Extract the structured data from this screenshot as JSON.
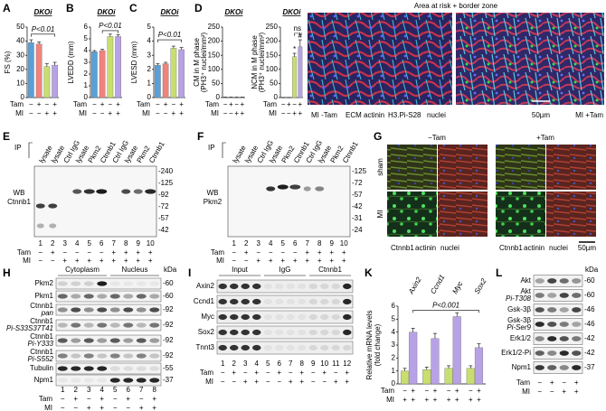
{
  "chart_data": [
    {
      "type": "bar",
      "label": "A",
      "title": "DKOi",
      "ylabel": "FS (%)",
      "values": [
        39,
        38,
        22,
        23
      ],
      "errors": [
        2,
        1.5,
        2,
        2
      ],
      "colors": [
        "#5aa0d8",
        "#f0837c",
        "#c8de6f",
        "#b8a2e6"
      ],
      "ylim": [
        0,
        50
      ],
      "yticks": [
        0,
        10,
        20,
        30,
        40,
        50
      ],
      "annotation": "P<0.01",
      "conditions": [
        {
          "label": "Tam",
          "values": [
            "−",
            "+",
            "−",
            "+"
          ]
        },
        {
          "label": "MI",
          "values": [
            "−",
            "−",
            "+",
            "+"
          ]
        }
      ]
    },
    {
      "type": "bar",
      "label": "B",
      "title": "DKOi",
      "ylabel": "LVEDD (mm)",
      "values": [
        3.9,
        4.0,
        5.2,
        5.2
      ],
      "errors": [
        0.1,
        0.1,
        0.2,
        0.15
      ],
      "colors": [
        "#5aa0d8",
        "#f0837c",
        "#c8de6f",
        "#b8a2e6"
      ],
      "ylim": [
        0,
        6
      ],
      "yticks": [
        0,
        1,
        2,
        3,
        4,
        5,
        6
      ],
      "annotation": "P<0.01",
      "conditions": [
        {
          "label": "Tam",
          "values": [
            "−",
            "+",
            "−",
            "+"
          ]
        },
        {
          "label": "MI",
          "values": [
            "−",
            "−",
            "+",
            "+"
          ]
        }
      ]
    },
    {
      "type": "bar",
      "label": "C",
      "title": "DKOi",
      "ylabel": "LVESD (mm)",
      "values": [
        2.3,
        2.4,
        3.5,
        3.4
      ],
      "errors": [
        0.1,
        0.1,
        0.15,
        0.15
      ],
      "colors": [
        "#5aa0d8",
        "#f0837c",
        "#c8de6f",
        "#b8a2e6"
      ],
      "ylim": [
        0,
        5
      ],
      "yticks": [
        0,
        1,
        2,
        3,
        4,
        5
      ],
      "annotation": "P<0.01",
      "conditions": [
        {
          "label": "Tam",
          "values": [
            "−",
            "+",
            "−",
            "+"
          ]
        },
        {
          "label": "MI",
          "values": [
            "−",
            "−",
            "+",
            "+"
          ]
        }
      ]
    },
    {
      "type": "bar",
      "label": "D",
      "title": "DKOi",
      "ylabel": [
        "CM in M phase",
        "(PH3⁺ nuclei/mm²)"
      ],
      "values": [
        1,
        1,
        1,
        1
      ],
      "errors": [
        0.5,
        0.5,
        0.5,
        0.5
      ],
      "colors": [
        "#5aa0d8",
        "#f0837c",
        "#c8de6f",
        "#b8a2e6"
      ],
      "ylim": [
        0,
        250
      ],
      "yticks": [
        0,
        50,
        100,
        150,
        200,
        250
      ],
      "conditions": [
        {
          "label": "Tam",
          "values": [
            "−",
            "+",
            "−",
            "+"
          ]
        },
        {
          "label": "MI",
          "values": [
            "−",
            "−",
            "+",
            "+"
          ]
        }
      ]
    },
    {
      "type": "bar",
      "title": "DKOi",
      "ylabel": [
        "NCM in M phase",
        "(PH3⁺ nuclei/mm²)"
      ],
      "values": [
        0,
        0,
        145,
        180
      ],
      "errors": [
        0,
        0,
        12,
        25
      ],
      "colors": [
        "#5aa0d8",
        "#f0837c",
        "#c8de6f",
        "#b8a2e6"
      ],
      "ylim": [
        0,
        250
      ],
      "yticks": [
        0,
        50,
        100,
        150,
        200,
        250
      ],
      "annotations": [
        "ns",
        "*",
        "#"
      ],
      "conditions": [
        {
          "label": "Tam",
          "values": [
            "−",
            "+",
            "−",
            "+"
          ]
        },
        {
          "label": "MI",
          "values": [
            "−",
            "−",
            "+",
            "+"
          ]
        }
      ]
    },
    {
      "type": "bar",
      "label": "K",
      "ylabel": [
        "Relative mRNA levels",
        "(fold change)"
      ],
      "groups": [
        "Axin2",
        "Ccnd1",
        "Myc",
        "Sox2"
      ],
      "values": [
        1,
        4,
        1.1,
        3.5,
        1.2,
        5.2,
        1.2,
        2.8
      ],
      "errors": [
        0.2,
        0.3,
        0.2,
        0.4,
        0.2,
        0.3,
        0.2,
        0.3
      ],
      "colors": [
        "#c8de6f",
        "#b8a2e6",
        "#c8de6f",
        "#b8a2e6",
        "#c8de6f",
        "#b8a2e6",
        "#c8de6f",
        "#b8a2e6"
      ],
      "ylim": [
        0,
        6
      ],
      "yticks": [
        0,
        1,
        2,
        3,
        4,
        5,
        6
      ],
      "annotation": "P<0.001",
      "conditions": [
        {
          "label": "Tam",
          "values": [
            "−",
            "+",
            "−",
            "+",
            "−",
            "+",
            "−",
            "+"
          ]
        },
        {
          "label": "MI",
          "values": [
            "+",
            "+",
            "+",
            "+",
            "+",
            "+",
            "+",
            "+"
          ]
        }
      ]
    }
  ],
  "panels": {
    "D_image": {
      "title": "Area at risk + border zone",
      "left": "MI -Tam",
      "right": "MI +Tam",
      "stains": [
        "ECM",
        "actinin",
        "H3.Pi-S28",
        "nuclei"
      ],
      "scale": "50µm"
    },
    "E": {
      "label": "E",
      "ip": "IP",
      "lanes": [
        "lysate",
        "lysate",
        "Ctrl IgG",
        "lysate",
        "Pkm2",
        "Ctnnb1",
        "Ctrl IgG",
        "lysate",
        "Pkm2",
        "Ctnnb1"
      ],
      "wb": [
        "WB",
        "Ctnnb1"
      ],
      "kda": [
        "-240",
        "-125",
        "-92",
        "-72",
        "-57",
        "-42"
      ],
      "numbers": [
        "1",
        "2",
        "3",
        "4",
        "5",
        "6",
        "7",
        "8",
        "9",
        "10"
      ],
      "conditions": [
        {
          "label": "Tam",
          "values": [
            "−",
            "+",
            "−",
            "−",
            "−",
            "−",
            "+",
            "+",
            "+",
            "+"
          ]
        },
        {
          "label": "MI",
          "values": [
            "−",
            "−",
            "+",
            "+",
            "+",
            "+",
            "+",
            "+",
            "+",
            "+"
          ]
        }
      ]
    },
    "F": {
      "label": "F",
      "ip": "IP",
      "lanes": [
        "lysate",
        "lysate",
        "Ctrl IgG",
        "lysate",
        "Pkm2",
        "Ctnnb1",
        "Ctrl IgG",
        "lysate",
        "Pkm2",
        "Ctnnb1"
      ],
      "wb": [
        "WB",
        "Pkm2"
      ],
      "kda": [
        "-125",
        "-72",
        "-57",
        "-42",
        "-31",
        "-24"
      ],
      "numbers": [
        "1",
        "2",
        "3",
        "4",
        "5",
        "6",
        "7",
        "8",
        "9",
        "10"
      ],
      "conditions": [
        {
          "label": "Tam",
          "values": [
            "−",
            "+",
            "−",
            "−",
            "−",
            "−",
            "+",
            "+",
            "+",
            "+"
          ]
        },
        {
          "label": "MI",
          "values": [
            "−",
            "−",
            "+",
            "+",
            "+",
            "+",
            "+",
            "+",
            "+",
            "+"
          ]
        }
      ]
    },
    "G": {
      "label": "G",
      "columns": [
        "−Tam",
        "+Tam"
      ],
      "rows": [
        "sham",
        "MI"
      ],
      "stains": [
        "Ctnnb1",
        "actinin",
        "nuclei"
      ],
      "scale": "50µm"
    },
    "H": {
      "label": "H",
      "headers": [
        "Cytoplasm",
        "Nucleus"
      ],
      "kda_header": "kDa",
      "rows": [
        {
          "name": "Pkm2",
          "kda": "-60"
        },
        {
          "name": "Pkm1",
          "kda": "-60"
        },
        {
          "name": "Ctnnb1",
          "sub": "pan",
          "kda": "-92"
        },
        {
          "name": "Ctnnb1",
          "sub": "Pi-S33S37T41",
          "kda": "-92"
        },
        {
          "name": "Ctnnb1",
          "sub": "Pi-Y333",
          "kda": "-92"
        },
        {
          "name": "Ctnnb1",
          "sub": "Pi-S552",
          "kda": "-92"
        },
        {
          "name": "Tubulin",
          "kda": "-55"
        },
        {
          "name": "Npm1",
          "kda": "-37"
        }
      ],
      "numbers": [
        "1",
        "2",
        "3",
        "4",
        "5",
        "6",
        "7",
        "8"
      ],
      "conditions": [
        {
          "label": "Tam",
          "values": [
            "−",
            "+",
            "−",
            "+",
            "−",
            "+",
            "−",
            "+"
          ]
        },
        {
          "label": "MI",
          "values": [
            "−",
            "−",
            "+",
            "+",
            "−",
            "−",
            "+",
            "+"
          ]
        }
      ]
    },
    "I": {
      "label": "I",
      "headers": [
        "Input",
        "IgG",
        "Ctnnb1"
      ],
      "rows": [
        {
          "name": "Axin2"
        },
        {
          "name": "Ccnd1"
        },
        {
          "name": "Myc"
        },
        {
          "name": "Sox2"
        },
        {
          "name": "Tnnt3"
        }
      ],
      "numbers": [
        "1",
        "2",
        "3",
        "4",
        "5",
        "6",
        "7",
        "8",
        "9",
        "10",
        "11",
        "12"
      ],
      "conditions": [
        {
          "label": "Tam",
          "values": [
            "−",
            "+",
            "−",
            "+",
            "−",
            "+",
            "−",
            "+",
            "−",
            "+",
            "−",
            "+"
          ]
        },
        {
          "label": "MI",
          "values": [
            "−",
            "−",
            "+",
            "+",
            "−",
            "−",
            "+",
            "+",
            "−",
            "−",
            "+",
            "+"
          ]
        }
      ]
    },
    "L": {
      "label": "L",
      "kda_header": "kDa",
      "rows": [
        {
          "name": "Akt",
          "kda": "-60"
        },
        {
          "name": "Akt",
          "sub": "Pi-T308",
          "kda": "-60"
        },
        {
          "name": "Gsk-3β",
          "kda": "-46"
        },
        {
          "name": "Gsk-3β",
          "sub": "Pi-Ser9",
          "kda": "-46"
        },
        {
          "name": "Erk1/2",
          "kda": "-42"
        },
        {
          "name": "Erk1/2-Pi",
          "kda": "-42"
        },
        {
          "name": "Npm1",
          "kda": "-37"
        }
      ],
      "conditions": [
        {
          "label": "Tam",
          "values": [
            "−",
            "+",
            "−",
            "+"
          ]
        },
        {
          "label": "MI",
          "values": [
            "−",
            "−",
            "+",
            "+"
          ]
        }
      ]
    }
  }
}
